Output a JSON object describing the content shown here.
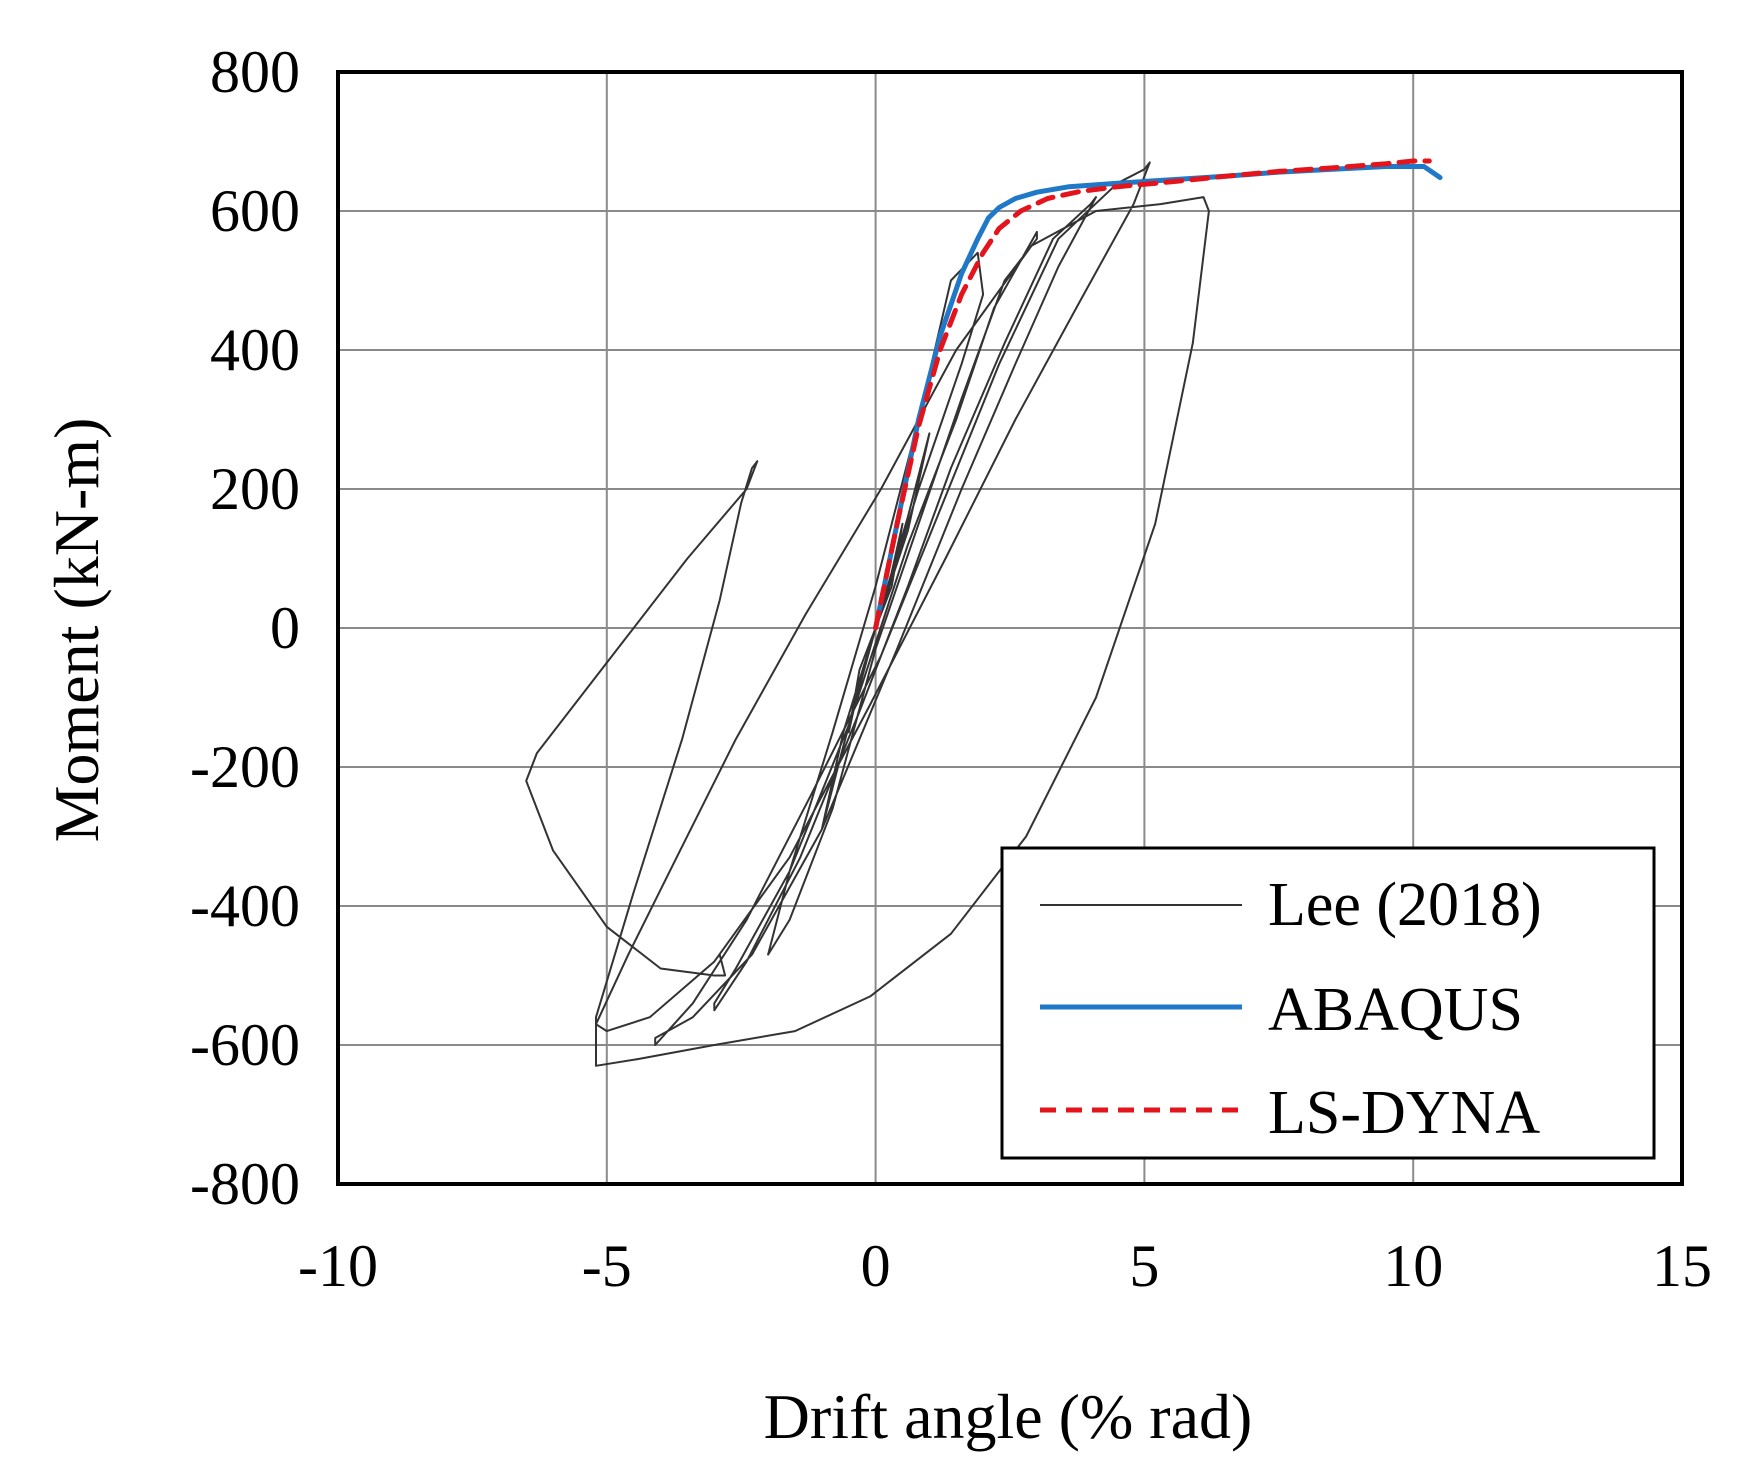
{
  "chart_data": {
    "type": "line",
    "title": "",
    "xlabel": "Drift angle (% rad)",
    "ylabel": "Moment (kN-m)",
    "xlim": [
      -10,
      15
    ],
    "ylim": [
      -800,
      800
    ],
    "x_ticks": [
      -10,
      -5,
      0,
      5,
      10,
      15
    ],
    "y_ticks": [
      -800,
      -600,
      -400,
      -200,
      0,
      200,
      400,
      600,
      800
    ],
    "x_tick_labels": [
      "-10",
      "-5",
      "0",
      "5",
      "10",
      "15"
    ],
    "y_tick_labels": [
      "-800",
      "-600",
      "-400",
      "-200",
      "0",
      "200",
      "400",
      "600",
      "800"
    ],
    "grid": true,
    "legend_position": "bottom-right",
    "series": [
      {
        "name": "Lee (2018)",
        "color": "#333333",
        "style": "solid",
        "x": [
          0,
          0.3,
          0.5,
          0.3,
          0,
          -0.3,
          -0.5,
          -0.3,
          0,
          0.6,
          1.0,
          0.6,
          0,
          -0.6,
          -1.0,
          -0.6,
          0,
          0.8,
          1.6,
          2.0,
          1.9,
          1.4,
          0.8,
          0,
          -0.8,
          -1.6,
          -2.0,
          -1.6,
          -0.8,
          0,
          0.8,
          1.6,
          2.4,
          3.0,
          3.0,
          2.2,
          1.5,
          0.6,
          -0.5,
          -1.6,
          -2.6,
          -3.0,
          -3.0,
          -2.4,
          -1.4,
          -0.3,
          0.6,
          1.4,
          2.4,
          3.3,
          4.0,
          4.1,
          3.4,
          2.6,
          1.6,
          0.4,
          -1.0,
          -2.3,
          -3.4,
          -4.1,
          -4.1,
          -3.4,
          -2.4,
          -1.2,
          0.1,
          1.2,
          2.3,
          3.4,
          4.5,
          5.0,
          5.1,
          4.8,
          3.8,
          2.6,
          1.3,
          -0.1,
          -1.6,
          -3.0,
          -4.2,
          -5.0,
          -5.2,
          -5.2,
          -4.6,
          -3.7,
          -2.6,
          -1.3,
          0.1,
          1.5,
          2.9,
          4.1,
          5.3,
          6.1,
          6.2,
          5.9,
          5.2,
          4.1,
          2.8,
          1.4,
          -0.1,
          -1.5,
          -3.0,
          -4.4,
          -5.2,
          -5.2,
          -4.5,
          -3.6,
          -2.9,
          -2.5,
          -2.3,
          -2.2,
          -2.4,
          -3.5,
          -4.7,
          -5.5,
          -6.3,
          -6.5,
          -6.0,
          -5.0,
          -4.0,
          -3.0,
          -2.8,
          -2.9
        ],
        "y": [
          0,
          80,
          150,
          60,
          0,
          -80,
          -150,
          -60,
          0,
          160,
          280,
          140,
          0,
          -170,
          -290,
          -150,
          0,
          200,
          380,
          480,
          540,
          500,
          300,
          60,
          -150,
          -350,
          -470,
          -420,
          -260,
          -30,
          150,
          330,
          500,
          560,
          570,
          460,
          300,
          120,
          -140,
          -350,
          -490,
          -540,
          -550,
          -480,
          -330,
          -120,
          60,
          230,
          410,
          560,
          610,
          620,
          520,
          380,
          200,
          -30,
          -290,
          -470,
          -560,
          -590,
          -600,
          -540,
          -420,
          -240,
          -40,
          170,
          380,
          560,
          640,
          660,
          670,
          610,
          470,
          300,
          100,
          -110,
          -330,
          -480,
          -560,
          -580,
          -570,
          -570,
          -470,
          -330,
          -160,
          20,
          200,
          400,
          550,
          600,
          610,
          620,
          600,
          410,
          150,
          -100,
          -300,
          -440,
          -530,
          -580,
          -600,
          -620,
          -630,
          -560,
          -380,
          -160,
          40,
          180,
          230,
          240,
          200,
          100,
          -20,
          -100,
          -180,
          -220,
          -320,
          -430,
          -490,
          -500,
          -500,
          -470
        ]
      },
      {
        "name": "ABAQUS",
        "color": "#1f78c8",
        "style": "solid",
        "x": [
          0,
          0.4,
          0.8,
          1.2,
          1.6,
          1.9,
          2.1,
          2.3,
          2.6,
          3.0,
          3.6,
          4.5,
          5.5,
          6.5,
          7.5,
          8.5,
          9.5,
          10.2,
          10.5
        ],
        "y": [
          0,
          150,
          300,
          420,
          510,
          560,
          590,
          605,
          618,
          627,
          635,
          640,
          645,
          650,
          656,
          660,
          664,
          664,
          648
        ]
      },
      {
        "name": "LS-DYNA",
        "color": "#e3141b",
        "style": "dashed",
        "x": [
          0,
          0.4,
          0.8,
          1.2,
          1.6,
          2.0,
          2.3,
          2.7,
          3.2,
          3.8,
          4.5,
          5.5,
          6.5,
          7.5,
          8.5,
          9.5,
          10.0,
          10.3
        ],
        "y": [
          0,
          150,
          290,
          400,
          480,
          540,
          575,
          600,
          618,
          628,
          635,
          642,
          650,
          657,
          662,
          668,
          672,
          672
        ]
      }
    ]
  }
}
